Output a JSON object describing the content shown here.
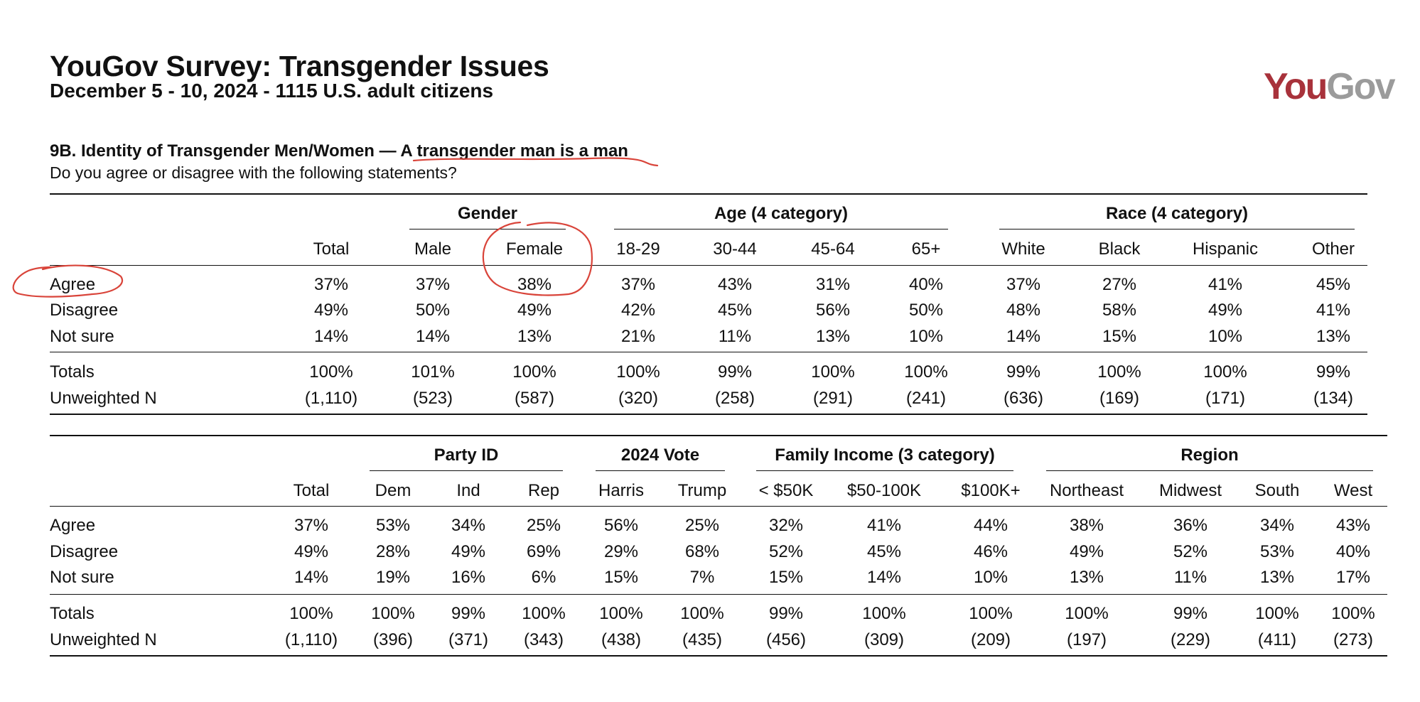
{
  "header": {
    "title": "YouGov Survey: Transgender Issues",
    "subtitle": "December 5 - 10, 2024 - 1115 U.S. adult citizens",
    "logo_text": "YouGov",
    "logo_color_you": "#a8323b",
    "logo_color_gov": "#9b9b9b"
  },
  "question": {
    "label": "9B. Identity of Transgender Men/Women — ",
    "statement": "A transgender man is a man",
    "prompt": "Do you agree or disagree with the following statements?"
  },
  "annotation_color": "#d9443a",
  "table1": {
    "groups": [
      "Gender",
      "Age (4 category)",
      "Race (4 category)"
    ],
    "columns": [
      "Total",
      "Male",
      "Female",
      "18-29",
      "30-44",
      "45-64",
      "65+",
      "White",
      "Black",
      "Hispanic",
      "Other"
    ],
    "rows": [
      {
        "label": "Agree",
        "values": [
          "37%",
          "37%",
          "38%",
          "37%",
          "43%",
          "31%",
          "40%",
          "37%",
          "27%",
          "41%",
          "45%"
        ]
      },
      {
        "label": "Disagree",
        "values": [
          "49%",
          "50%",
          "49%",
          "42%",
          "45%",
          "56%",
          "50%",
          "48%",
          "58%",
          "49%",
          "41%"
        ]
      },
      {
        "label": "Not sure",
        "values": [
          "14%",
          "14%",
          "13%",
          "21%",
          "11%",
          "13%",
          "10%",
          "14%",
          "15%",
          "10%",
          "13%"
        ]
      }
    ],
    "totals": {
      "label": "Totals",
      "values": [
        "100%",
        "101%",
        "100%",
        "100%",
        "99%",
        "100%",
        "100%",
        "99%",
        "100%",
        "100%",
        "99%"
      ]
    },
    "unweighted": {
      "label": "Unweighted N",
      "values": [
        "(1,110)",
        "(523)",
        "(587)",
        "(320)",
        "(258)",
        "(291)",
        "(241)",
        "(636)",
        "(169)",
        "(171)",
        "(134)"
      ]
    }
  },
  "table2": {
    "groups": [
      "Party ID",
      "2024 Vote",
      "Family Income (3 category)",
      "Region"
    ],
    "columns": [
      "Total",
      "Dem",
      "Ind",
      "Rep",
      "Harris",
      "Trump",
      "< $50K",
      "$50-100K",
      "$100K+",
      "Northeast",
      "Midwest",
      "South",
      "West"
    ],
    "rows": [
      {
        "label": "Agree",
        "values": [
          "37%",
          "53%",
          "34%",
          "25%",
          "56%",
          "25%",
          "32%",
          "41%",
          "44%",
          "38%",
          "36%",
          "34%",
          "43%"
        ]
      },
      {
        "label": "Disagree",
        "values": [
          "49%",
          "28%",
          "49%",
          "69%",
          "29%",
          "68%",
          "52%",
          "45%",
          "46%",
          "49%",
          "52%",
          "53%",
          "40%"
        ]
      },
      {
        "label": "Not sure",
        "values": [
          "14%",
          "19%",
          "16%",
          "6%",
          "15%",
          "7%",
          "15%",
          "14%",
          "10%",
          "13%",
          "11%",
          "13%",
          "17%"
        ]
      }
    ],
    "totals": {
      "label": "Totals",
      "values": [
        "100%",
        "100%",
        "99%",
        "100%",
        "100%",
        "100%",
        "99%",
        "100%",
        "100%",
        "100%",
        "99%",
        "100%",
        "100%"
      ]
    },
    "unweighted": {
      "label": "Unweighted N",
      "values": [
        "(1,110)",
        "(396)",
        "(371)",
        "(343)",
        "(438)",
        "(435)",
        "(456)",
        "(309)",
        "(209)",
        "(197)",
        "(229)",
        "(411)",
        "(273)"
      ]
    }
  }
}
